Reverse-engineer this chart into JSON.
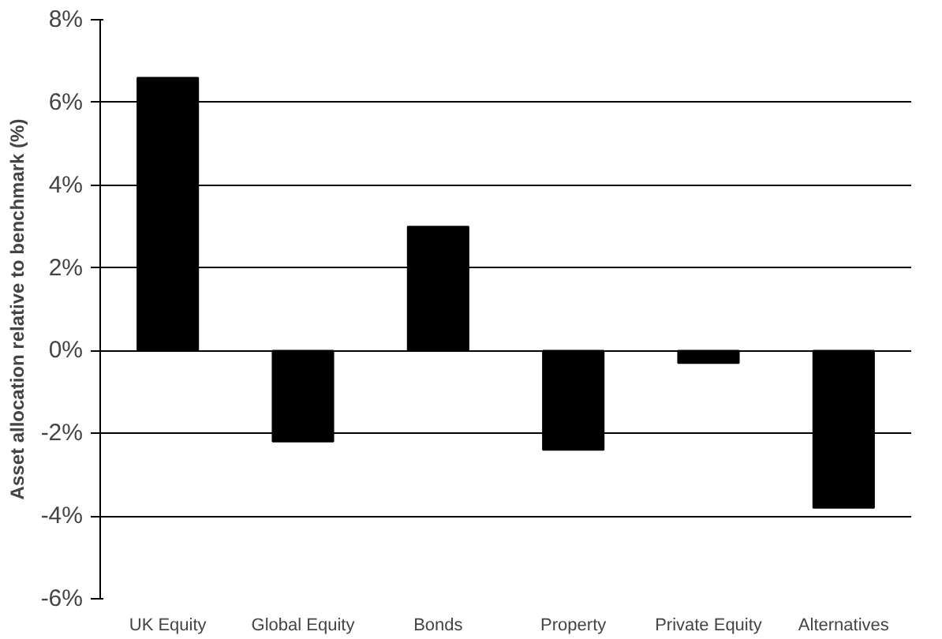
{
  "chart_data": {
    "type": "bar",
    "ylabel": "Asset allocation relative to benchmark (%)",
    "categories": [
      "UK Equity",
      "Global Equity",
      "Bonds",
      "Property",
      "Private Equity",
      "Alternatives"
    ],
    "values": [
      6.6,
      -2.2,
      3.0,
      -2.4,
      -0.3,
      -3.8
    ],
    "color": "#000000",
    "ylim": [
      -6,
      8
    ],
    "yticks": [
      {
        "value": -6,
        "label": "-6%"
      },
      {
        "value": -4,
        "label": "-4%"
      },
      {
        "value": -2,
        "label": "-2%"
      },
      {
        "value": 0,
        "label": "0%"
      },
      {
        "value": 2,
        "label": "2%"
      },
      {
        "value": 4,
        "label": "4%"
      },
      {
        "value": 6,
        "label": "6%"
      },
      {
        "value": 8,
        "label": "8%"
      }
    ],
    "grid": "y"
  }
}
